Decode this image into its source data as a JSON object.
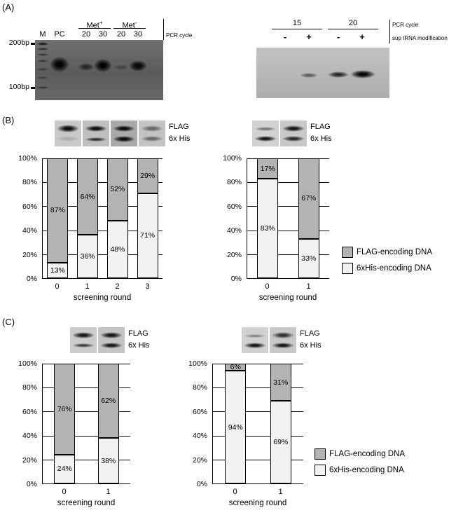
{
  "figure": {
    "panel_a_label": "(A)",
    "panel_b_label": "(B)",
    "panel_c_label": "(C)"
  },
  "panel_a": {
    "left_gel": {
      "size_markers": [
        "200bp",
        "100bp"
      ],
      "lane_m": "M",
      "lane_pc": "PC",
      "met_plus_base": "Met",
      "met_plus_sup": "+",
      "met_minus_base": "Met",
      "met_minus_sup": "-",
      "cycles": [
        "20",
        "30",
        "20",
        "30"
      ],
      "pcr_cycle_label": "PCR cycle"
    },
    "right_gel": {
      "cycle_groups": [
        "15",
        "20"
      ],
      "signs": [
        "-",
        "+",
        "-",
        "+"
      ],
      "pcr_cycle_label": "PCR cycle",
      "sup_label": "sup tRNA modification"
    }
  },
  "blot_labels": {
    "flag": "FLAG",
    "his": "6x His"
  },
  "legend": {
    "flag": "FLAG-encoding DNA",
    "his": "6xHis-encoding DNA"
  },
  "chart_data": [
    {
      "type": "bar",
      "stacked": true,
      "title": "",
      "xlabel": "screening round",
      "ylabel": "",
      "ylim": [
        0,
        100
      ],
      "grid": true,
      "categories": [
        "0",
        "1",
        "2",
        "3"
      ],
      "series": [
        {
          "name": "6xHis-encoding DNA",
          "color": "#f2f2f2",
          "values": [
            13,
            36,
            48,
            71
          ]
        },
        {
          "name": "FLAG-encoding DNA",
          "color": "#b3b3b3",
          "values": [
            87,
            64,
            52,
            29
          ]
        }
      ],
      "ytick_values": [
        0,
        20,
        40,
        60,
        80,
        100
      ],
      "ytick_labels": [
        "0%",
        "20%",
        "40%",
        "60%",
        "80%",
        "100%"
      ]
    },
    {
      "type": "bar",
      "stacked": true,
      "title": "",
      "xlabel": "screening round",
      "ylabel": "",
      "ylim": [
        0,
        100
      ],
      "grid": true,
      "categories": [
        "0",
        "1"
      ],
      "series": [
        {
          "name": "6xHis-encoding DNA",
          "color": "#f2f2f2",
          "values": [
            83,
            33
          ]
        },
        {
          "name": "FLAG-encoding DNA",
          "color": "#b3b3b3",
          "values": [
            17,
            67
          ]
        }
      ],
      "ytick_values": [
        0,
        20,
        40,
        60,
        80,
        100
      ],
      "ytick_labels": [
        "0%",
        "20%",
        "40%",
        "60%",
        "80%",
        "100%"
      ]
    },
    {
      "type": "bar",
      "stacked": true,
      "title": "",
      "xlabel": "screening round",
      "ylabel": "",
      "ylim": [
        0,
        100
      ],
      "grid": true,
      "categories": [
        "0",
        "1"
      ],
      "series": [
        {
          "name": "6xHis-encoding DNA",
          "color": "#f2f2f2",
          "values": [
            24,
            38
          ]
        },
        {
          "name": "FLAG-encoding DNA",
          "color": "#b3b3b3",
          "values": [
            76,
            62
          ]
        }
      ],
      "ytick_values": [
        0,
        20,
        40,
        60,
        80,
        100
      ],
      "ytick_labels": [
        "0%",
        "20%",
        "40%",
        "60%",
        "80%",
        "100%"
      ]
    },
    {
      "type": "bar",
      "stacked": true,
      "title": "",
      "xlabel": "screening round",
      "ylabel": "",
      "ylim": [
        0,
        100
      ],
      "grid": true,
      "categories": [
        "0",
        "1"
      ],
      "series": [
        {
          "name": "6xHis-encoding DNA",
          "color": "#f2f2f2",
          "values": [
            94,
            69
          ]
        },
        {
          "name": "FLAG-encoding DNA",
          "color": "#b3b3b3",
          "values": [
            6,
            31
          ]
        }
      ],
      "ytick_values": [
        0,
        20,
        40,
        60,
        80,
        100
      ],
      "ytick_labels": [
        "0%",
        "20%",
        "40%",
        "60%",
        "80%",
        "100%"
      ]
    }
  ]
}
